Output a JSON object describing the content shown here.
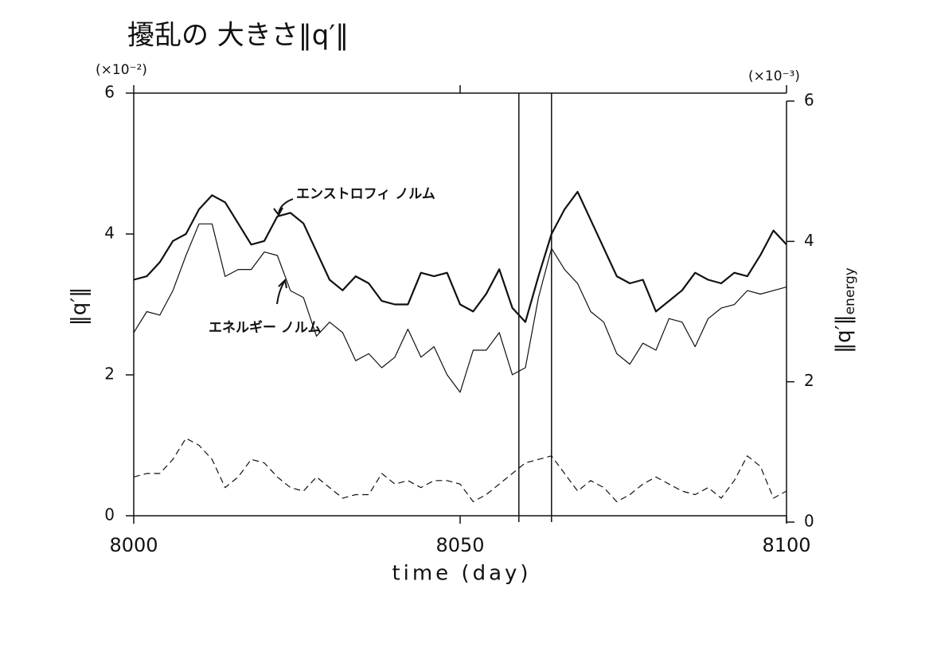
{
  "chart_data": {
    "type": "line",
    "title": "擾乱の 大きさ‖q′‖",
    "xlabel": "time (day)",
    "ylabel": "‖q′‖",
    "y2label": "‖q′‖",
    "y2label_sub": "energy",
    "y_unit": "(×10⁻²)",
    "y2_unit": "(×10⁻³)",
    "x": [
      8000,
      8002,
      8004,
      8006,
      8008,
      8010,
      8012,
      8014,
      8016,
      8018,
      8020,
      8022,
      8024,
      8026,
      8028,
      8030,
      8032,
      8034,
      8036,
      8038,
      8040,
      8042,
      8044,
      8046,
      8048,
      8050,
      8052,
      8054,
      8056,
      8058,
      8060,
      8062,
      8064,
      8066,
      8068,
      8070,
      8072,
      8074,
      8076,
      8078,
      8080,
      8082,
      8084,
      8086,
      8088,
      8090,
      8092,
      8094,
      8096,
      8098,
      8100
    ],
    "series": [
      {
        "name": "エンストロフィ ノルム",
        "color": "#111111",
        "width": 2.2,
        "dash": false,
        "values": [
          3.35,
          3.4,
          3.6,
          3.9,
          4.0,
          4.35,
          4.55,
          4.45,
          4.15,
          3.85,
          3.9,
          4.25,
          4.3,
          4.15,
          3.75,
          3.35,
          3.2,
          3.4,
          3.3,
          3.05,
          3.0,
          3.0,
          3.45,
          3.4,
          3.45,
          3.0,
          2.9,
          3.15,
          3.5,
          2.95,
          2.75,
          3.4,
          4.0,
          4.35,
          4.6,
          4.2,
          3.8,
          3.4,
          3.3,
          3.35,
          2.9,
          3.05,
          3.2,
          3.45,
          3.35,
          3.3,
          3.45,
          3.4,
          3.7,
          4.05,
          3.85
        ]
      },
      {
        "name": "エネルギー ノルム",
        "color": "#111111",
        "width": 1.2,
        "dash": false,
        "axis": "y2",
        "values": [
          2.7,
          3.0,
          2.95,
          3.3,
          3.8,
          4.25,
          4.25,
          3.5,
          3.6,
          3.6,
          3.85,
          3.8,
          3.3,
          3.2,
          2.65,
          2.85,
          2.7,
          2.3,
          2.4,
          2.2,
          2.35,
          2.75,
          2.35,
          2.5,
          2.1,
          1.85,
          2.45,
          2.45,
          2.7,
          2.1,
          2.2,
          3.2,
          3.9,
          3.6,
          3.4,
          3.0,
          2.85,
          2.4,
          2.25,
          2.55,
          2.45,
          2.9,
          2.85,
          2.5,
          2.9,
          3.05,
          3.1,
          3.3,
          3.25,
          3.3,
          3.35
        ]
      },
      {
        "color": "#111111",
        "width": 1.2,
        "dash": true,
        "values": [
          0.55,
          0.6,
          0.6,
          0.8,
          1.1,
          1.0,
          0.8,
          0.4,
          0.55,
          0.8,
          0.75,
          0.55,
          0.4,
          0.35,
          0.55,
          0.4,
          0.25,
          0.3,
          0.3,
          0.6,
          0.45,
          0.5,
          0.4,
          0.5,
          0.5,
          0.45,
          0.2,
          0.3,
          0.45,
          0.6,
          0.75,
          0.8,
          0.85,
          0.6,
          0.35,
          0.5,
          0.4,
          0.2,
          0.3,
          0.45,
          0.55,
          0.45,
          0.35,
          0.3,
          0.4,
          0.25,
          0.5,
          0.85,
          0.7,
          0.25,
          0.35
        ]
      }
    ],
    "vlines": [
      8059,
      8064
    ],
    "xlim": [
      8000,
      8100
    ],
    "xticks": [
      8000,
      8050,
      8100
    ],
    "ylim": [
      0,
      6
    ],
    "yticks": [
      0,
      2,
      4,
      6
    ],
    "y2lim": [
      0,
      6
    ],
    "y2ticks": [
      0,
      2,
      4,
      6
    ]
  }
}
